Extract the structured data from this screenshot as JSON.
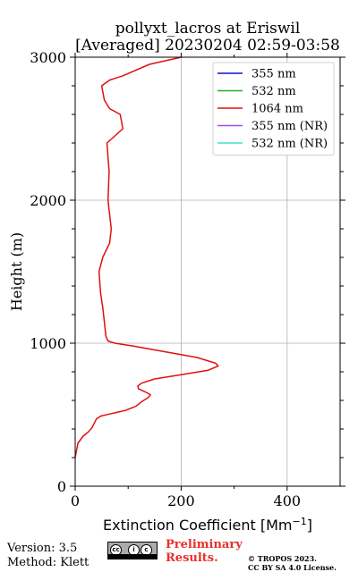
{
  "chart_data": {
    "type": "line",
    "title": "pollyxt_lacros at Eriswil",
    "subtitle": "[Averaged] 20230204 02:59-03:58",
    "xlabel": "Extinction Coefficient [Mm",
    "xlabel_sup": "−1",
    "xlabel_end": "]",
    "ylabel": "Height (m)",
    "xlim": [
      0,
      500
    ],
    "ylim": [
      0,
      3000
    ],
    "x_ticks": [
      0,
      200,
      400
    ],
    "y_ticks": [
      0,
      1000,
      2000,
      3000
    ],
    "grid": true,
    "legend_position": "top-right",
    "legend": [
      {
        "label": "355 nm",
        "color": "#1010d0"
      },
      {
        "label": "532 nm",
        "color": "#20b020"
      },
      {
        "label": "1064 nm",
        "color": "#e01010"
      },
      {
        "label": "355 nm (NR)",
        "color": "#9a50e8"
      },
      {
        "label": "532 nm (NR)",
        "color": "#40e0d0"
      }
    ],
    "series": [
      {
        "name": "1064 nm",
        "color": "#e01010",
        "points": [
          [
            0,
            200
          ],
          [
            5,
            300
          ],
          [
            15,
            350
          ],
          [
            25,
            380
          ],
          [
            32,
            410
          ],
          [
            36,
            440
          ],
          [
            40,
            470
          ],
          [
            48,
            490
          ],
          [
            65,
            505
          ],
          [
            95,
            530
          ],
          [
            115,
            560
          ],
          [
            125,
            590
          ],
          [
            138,
            620
          ],
          [
            142,
            640
          ],
          [
            132,
            660
          ],
          [
            120,
            680
          ],
          [
            118,
            700
          ],
          [
            125,
            720
          ],
          [
            150,
            750
          ],
          [
            200,
            780
          ],
          [
            250,
            810
          ],
          [
            270,
            840
          ],
          [
            265,
            860
          ],
          [
            230,
            900
          ],
          [
            170,
            940
          ],
          [
            110,
            980
          ],
          [
            75,
            1000
          ],
          [
            62,
            1015
          ],
          [
            58,
            1050
          ],
          [
            55,
            1150
          ],
          [
            52,
            1250
          ],
          [
            48,
            1350
          ],
          [
            45,
            1500
          ],
          [
            52,
            1600
          ],
          [
            65,
            1700
          ],
          [
            68,
            1800
          ],
          [
            65,
            1900
          ],
          [
            62,
            2000
          ],
          [
            63,
            2100
          ],
          [
            64,
            2200
          ],
          [
            62,
            2300
          ],
          [
            60,
            2400
          ],
          [
            75,
            2450
          ],
          [
            90,
            2500
          ],
          [
            85,
            2600
          ],
          [
            65,
            2640
          ],
          [
            55,
            2700
          ],
          [
            50,
            2800
          ],
          [
            65,
            2840
          ],
          [
            90,
            2870
          ],
          [
            140,
            2950
          ],
          [
            200,
            3000
          ]
        ]
      }
    ]
  },
  "footer": {
    "version": "Version: 3.5",
    "method": "Method: Klett",
    "prelim_1": "Preliminary",
    "prelim_2": "Results.",
    "copyright_1": "© TROPOS 2023.",
    "copyright_2": "CC BY SA 4.0 License."
  }
}
